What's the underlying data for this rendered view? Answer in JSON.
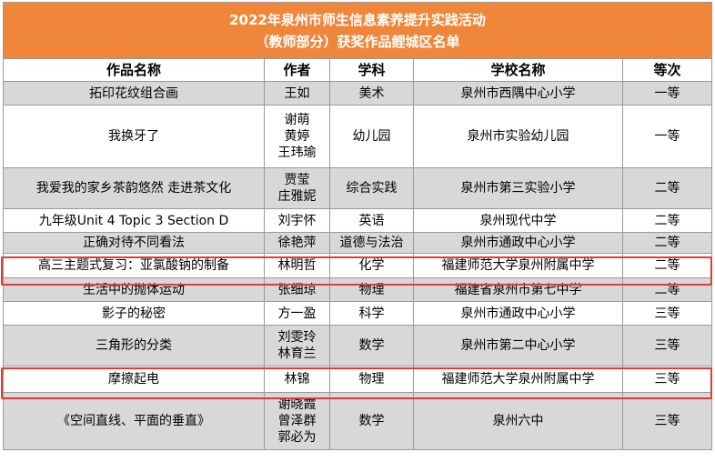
{
  "title_line1": "2022年泉州市师生信息素养提升实践活动",
  "title_line2": "（教师部分）获奖作品鲤城区名单",
  "headers": [
    "作品名称",
    "作者",
    "学科",
    "学校名称",
    "等次"
  ],
  "rows": [
    {
      "work": "拓印花纹组合画",
      "authors": [
        "王如"
      ],
      "subject": "美术",
      "school": "泉州市西隅中心小学",
      "grade": "一等"
    },
    {
      "work": "我换牙了",
      "authors": [
        "谢萌",
        "黄婷",
        "王玮瑜"
      ],
      "subject": "幼儿园",
      "school": "泉州市实验幼儿园",
      "grade": "一等"
    },
    {
      "work": "我爱我的家乡茶韵悠然 走进茶文化",
      "authors": [
        "贾莹",
        "庄雅妮"
      ],
      "subject": "综合实践",
      "school": "泉州市第三实验小学",
      "grade": "二等"
    },
    {
      "work": "九年级Unit 4 Topic 3 Section D",
      "authors": [
        "刘宇怀"
      ],
      "subject": "英语",
      "school": "泉州现代中学",
      "grade": "二等"
    },
    {
      "work": "正确对待不同看法",
      "authors": [
        "徐艳萍"
      ],
      "subject": "道德与法治",
      "school": "泉州市通政中心小学",
      "grade": "二等"
    },
    {
      "work": "高三主题式复习：亚氯酸钠的制备",
      "authors": [
        "林明哲"
      ],
      "subject": "化学",
      "school": "福建师范大学泉州附属中学",
      "grade": "二等"
    },
    {
      "work": "生活中的抛体运动",
      "authors": [
        "张细琼"
      ],
      "subject": "物理",
      "school": "福建省泉州市第七中学",
      "grade": "二等"
    },
    {
      "work": "影子的秘密",
      "authors": [
        "方一盈"
      ],
      "subject": "科学",
      "school": "泉州市通政中心小学",
      "grade": "三等"
    },
    {
      "work": "三角形的分类",
      "authors": [
        "刘雯玲",
        "林育兰"
      ],
      "subject": "数学",
      "school": "泉州市第二中心小学",
      "grade": "三等"
    },
    {
      "work": "摩擦起电",
      "authors": [
        "林锦"
      ],
      "subject": "物理",
      "school": "福建师范大学泉州附属中学",
      "grade": "三等"
    },
    {
      "work": "《空间直线、平面的垂直》",
      "authors": [
        "谢晓霞",
        "曾泽群",
        "郭必为"
      ],
      "subject": "数学",
      "school": "泉州六中",
      "grade": "三等"
    }
  ]
}
